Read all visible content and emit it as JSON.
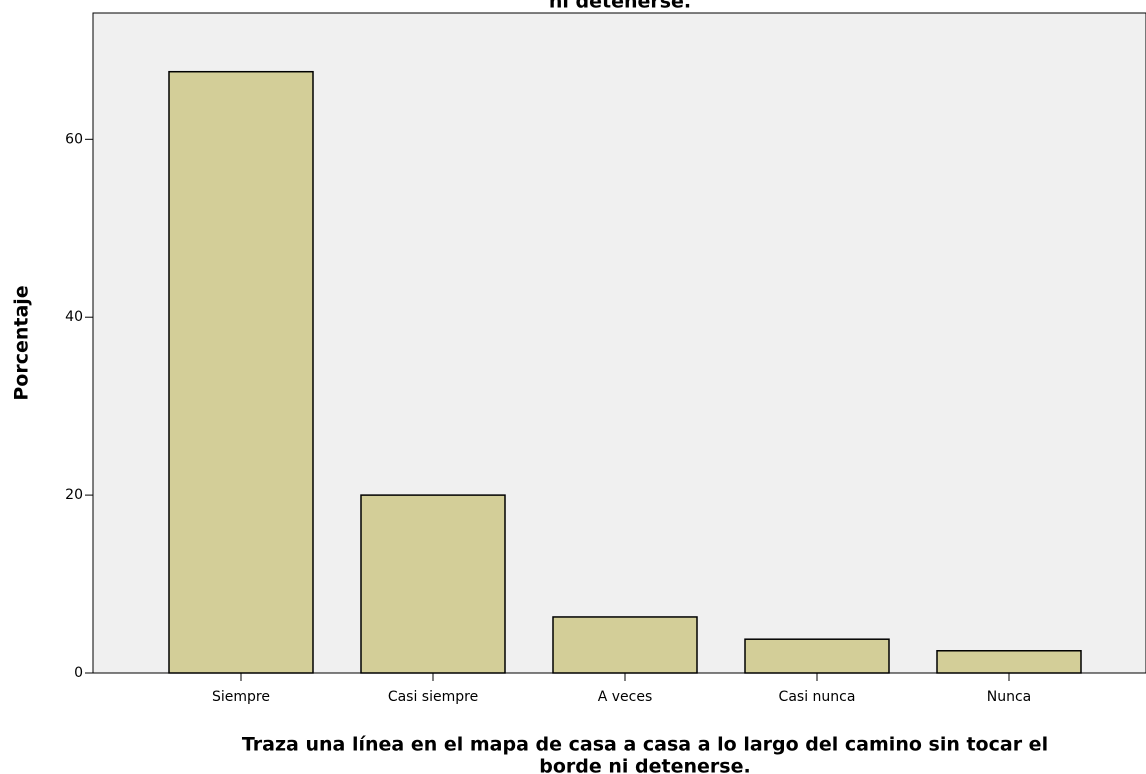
{
  "chart_data": {
    "type": "bar",
    "title": "ni detenerse.",
    "xlabel": [
      "Traza una línea en el mapa de casa a casa a lo largo del camino sin tocar el",
      "borde ni detenerse."
    ],
    "ylabel": "Porcentaje",
    "categories": [
      "Siempre",
      "Casi siempre",
      "A veces",
      "Casi nunca",
      "Nunca"
    ],
    "values": [
      67.6,
      20,
      6.3,
      3.8,
      2.5
    ],
    "color": "#d3ce98",
    "ylim": [
      0,
      74.2
    ],
    "yticks": [
      0,
      20,
      40,
      60
    ],
    "grid": false
  }
}
